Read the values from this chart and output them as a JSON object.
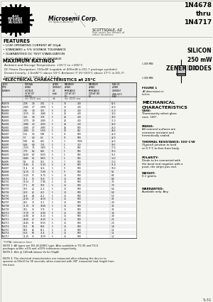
{
  "title_part": "1N4678\nthru\n1N4717",
  "subtitle": "SILICON\n250 mW\nZENER DIODES",
  "company": "Microsemi Corp.",
  "location_line1": "SCOTTSDALE, AZ",
  "location_line2": "See notes for details of",
  "location_line3": "other locations",
  "features_title": "FEATURES",
  "features": [
    "• LOW OPERATING CURRENT AT 50μA",
    "• STANDARD ± 5% VOLTAGE TOLERANCE",
    "• GUARANTEED DC TEST STABILIZATION",
    "• ALSO AVAILABLE IN DO-35 PACKAGE"
  ],
  "max_ratings_title": "MAXIMUM RATINGS",
  "max_ratings_lines": [
    "Ambient and Storage Temperature: ∔65°C to +200°C",
    "DC Power Dissipation: 150mW (capable of 400mW in DO-7 package symbols)",
    "Derate linearly: 1.0mW/°C above 50°C Ambient (T 25°/0/0°C above 17°C in DO-7)",
    "Forward Voltage @ 100mA: ≤ 1.5 V dc"
  ],
  "elec_char_title": "*ELECTRICAL CHARACTERISTICS at 25°C",
  "col_headers_row1": [
    "JEDEC",
    "NOMINAL",
    "ZENER",
    "MAXIMUM",
    "MAXIMUM",
    "MAXIMUM"
  ],
  "col_headers_row2": [
    "TYPE",
    "ZENER",
    "CURRENT",
    "ZENER",
    "ZENER",
    "DC ZENER"
  ],
  "col_headers_row3": [
    "NUMBER",
    "VOLTAGE",
    "IZT",
    "IMPEDANCE",
    "IMPEDANCE",
    "CURRENT"
  ],
  "col_headers_row4": [
    "",
    "VZ AT IZT",
    "(mA)",
    "ZZT AT IZT",
    "ZZK AT IZK",
    "@ TA=50°C"
  ],
  "col_headers_row5": [
    "",
    "(VOLTS)",
    "",
    "(Ω)",
    "(Ω)",
    "(mA)"
  ],
  "sub_headers": [
    "",
    "min  VOLTS  max",
    "mA",
    "min  VOLTS  max",
    "",
    ""
  ],
  "table_data": [
    [
      "1N4678",
      "2.28",
      "2.4",
      "2.52",
      "5",
      "30",
      "400",
      "0.2",
      "8",
      "52.0"
    ],
    [
      "1N4679",
      "2.565",
      "2.7",
      "2.835",
      "5",
      "30",
      "400",
      "0.3",
      "8",
      "46.0"
    ],
    [
      "1N4680",
      "2.85",
      "3.0",
      "3.15",
      "5",
      "29",
      "400",
      "0.4",
      "8",
      "41.0"
    ],
    [
      "1N4681",
      "3.135",
      "3.3",
      "3.465",
      "5",
      "29",
      "400",
      "0.4",
      "8",
      "38.0"
    ],
    [
      "1N4682",
      "3.42",
      "3.6",
      "3.78",
      "5",
      "28",
      "400",
      "0.4",
      "8",
      "34.0"
    ],
    [
      "1N4683",
      "3.705",
      "3.9",
      "4.095",
      "5",
      "28",
      "400",
      "0.5",
      "8",
      "31.0"
    ],
    [
      "1N4684",
      "4.085",
      "4.3",
      "4.515",
      "5",
      "28",
      "400",
      "0.6",
      "8",
      "28.0"
    ],
    [
      "1N4685",
      "4.465",
      "4.7",
      "4.935",
      "5",
      "24",
      "500",
      "0.6",
      "8",
      "26.0"
    ],
    [
      "1N4686",
      "4.845",
      "5.1",
      "5.355",
      "5",
      "18",
      "550",
      "0.7",
      "8",
      "24.0"
    ],
    [
      "1N4687",
      "5.32",
      "5.6",
      "5.88",
      "5",
      "11",
      "600",
      "1.0",
      "8",
      "22.0"
    ],
    [
      "1N4688",
      "5.7",
      "6.0",
      "6.3",
      "5",
      "11",
      "600",
      "1.0",
      "8",
      "22.0"
    ],
    [
      "1N4689",
      "5.89",
      "6.2",
      "6.51",
      "5",
      "3",
      "1000",
      "1.0",
      "8",
      "22.0"
    ],
    [
      "1N4690",
      "6.46",
      "6.8",
      "7.14",
      "5",
      "5",
      "750",
      "1.0",
      "8",
      "19.0"
    ],
    [
      "1N4691",
      "7.125",
      "7.5",
      "7.875",
      "5",
      "5",
      "500",
      "1.0",
      "8",
      "17.0"
    ],
    [
      "1N4692",
      "7.79",
      "8.2",
      "8.61",
      "5",
      "5",
      "500",
      "1.0",
      "8",
      "16.0"
    ],
    [
      "1N4693",
      "8.265",
      "8.7",
      "9.135",
      "5",
      "5",
      "500",
      "1.0",
      "8",
      "15.0"
    ],
    [
      "1N4694",
      "8.645",
      "9.1",
      "9.555",
      "5",
      "5",
      "500",
      "1.0",
      "8",
      "14.0"
    ],
    [
      "1N4695",
      "9.5",
      "10",
      "10.5",
      "5",
      "7",
      "600",
      "1.0",
      "8",
      "13.0"
    ],
    [
      "1N4696",
      "10.45",
      "11",
      "11.55",
      "5",
      "8",
      "600",
      "1.0",
      "8",
      "11.0"
    ],
    [
      "1N4697",
      "11.4",
      "12",
      "12.6",
      "5",
      "9",
      "600",
      "1.0",
      "8",
      "10.0"
    ],
    [
      "1N4698",
      "12.35",
      "13",
      "13.65",
      "5",
      "9",
      "600",
      "1.0",
      "8",
      "9.5"
    ],
    [
      "1N4699",
      "14.25",
      "15",
      "15.75",
      "5",
      "14",
      "600",
      "1.0",
      "8",
      "8.5"
    ],
    [
      "1N4700",
      "15.2",
      "16",
      "16.8",
      "5",
      "14",
      "600",
      "1.0",
      "8",
      "8.0"
    ],
    [
      "1N4701",
      "16.15",
      "17",
      "17.85",
      "5",
      "14",
      "600",
      "1.0",
      "8",
      "7.5"
    ],
    [
      "1N4702",
      "17.1",
      "18",
      "18.9",
      "5",
      "14",
      "600",
      "1.0",
      "8",
      "7.0"
    ],
    [
      "1N4703",
      "19.0",
      "20",
      "21.0",
      "5",
      "14",
      "600",
      "1.0",
      "8",
      "6.0"
    ],
    [
      "1N4704",
      "20.9",
      "22",
      "23.1",
      "5",
      "14",
      "600",
      "1.0",
      "8",
      "6.0"
    ],
    [
      "1N4705",
      "22.8",
      "24",
      "25.2",
      "5",
      "14",
      "600",
      "1.0",
      "8",
      "5.0"
    ],
    [
      "1N4706",
      "25.65",
      "27",
      "28.35",
      "5",
      "14",
      "600",
      "1.0",
      "8",
      "4.5"
    ],
    [
      "1N4707",
      "28.5",
      "30",
      "31.5",
      "5",
      "14",
      "600",
      "1.0",
      "8",
      "4.0"
    ],
    [
      "1N4708",
      "31.35",
      "33",
      "34.65",
      "5",
      "14",
      "600",
      "1.0",
      "8",
      "3.5"
    ],
    [
      "1N4709",
      "34.2",
      "36",
      "37.8",
      "5",
      "14",
      "600",
      "1.0",
      "8",
      "3.5"
    ],
    [
      "1N4710",
      "37.05",
      "39",
      "40.95",
      "5",
      "14",
      "600",
      "1.0",
      "8",
      "3.0"
    ],
    [
      "1N4711",
      "40.85",
      "43",
      "45.15",
      "5",
      "14",
      "600",
      "1.0",
      "8",
      "3.0"
    ],
    [
      "1N4712",
      "44.65",
      "47",
      "49.35",
      "5",
      "14",
      "600",
      "1.0",
      "8",
      "2.5"
    ],
    [
      "1N4713",
      "48.45",
      "51",
      "53.55",
      "5",
      "14",
      "600",
      "1.0",
      "8",
      "2.0"
    ],
    [
      "1N4714",
      "53.2",
      "56",
      "58.8",
      "5",
      "14",
      "600",
      "1.0",
      "8",
      "1.8"
    ],
    [
      "1N4715",
      "58.9",
      "62",
      "65.1",
      "5",
      "14",
      "600",
      "1.0",
      "8",
      "1.5"
    ],
    [
      "1N4716",
      "64.6",
      "68",
      "71.4",
      "5",
      "14",
      "600",
      "1.0",
      "8",
      "1.5"
    ],
    [
      "1N4717",
      "71.25",
      "75",
      "78.75",
      "5",
      "14",
      "600",
      "1.0",
      "8",
      "1.2"
    ]
  ],
  "note0": "*TOTAL tolerance here",
  "notes": [
    "NOTE 1: All types are DO-41 JEDEC type. Also available in TO-35 and TO-5 packages within ±5% and ±10% tolerances respectively.",
    "NOTE 2: ΔVz @ 100mA (above Vz for 50μA)",
    "NOTE 3: The electrical characteristics are measured after allowing the device to operate at 60mV for 30 seconds, when mounted with 3/8\" measured lead length from the base."
  ],
  "mech_title": "MECHANICAL\nCHARACTERISTICS",
  "mech_items": [
    [
      "CASE:",
      "Thermosetty select glass case. 100°."
    ],
    [
      "FINISH:",
      "All external surfaces are corrosion resistant and hermetically sealed."
    ],
    [
      "THERMAL RESISTANCE: 500°C/W",
      "(Typical) junction to lead or 0.7°C to free from body."
    ],
    [
      "POLARITY:",
      "Diode to be connected with the band end negative with a posit. the stripe pos end."
    ],
    [
      "WEIGHT:",
      "0.1 grams."
    ],
    [
      "WARRANTED:",
      "Available only: Any."
    ]
  ],
  "page_num": "5-31",
  "bg_color": "#f5f5f0",
  "text_color": "#111111"
}
